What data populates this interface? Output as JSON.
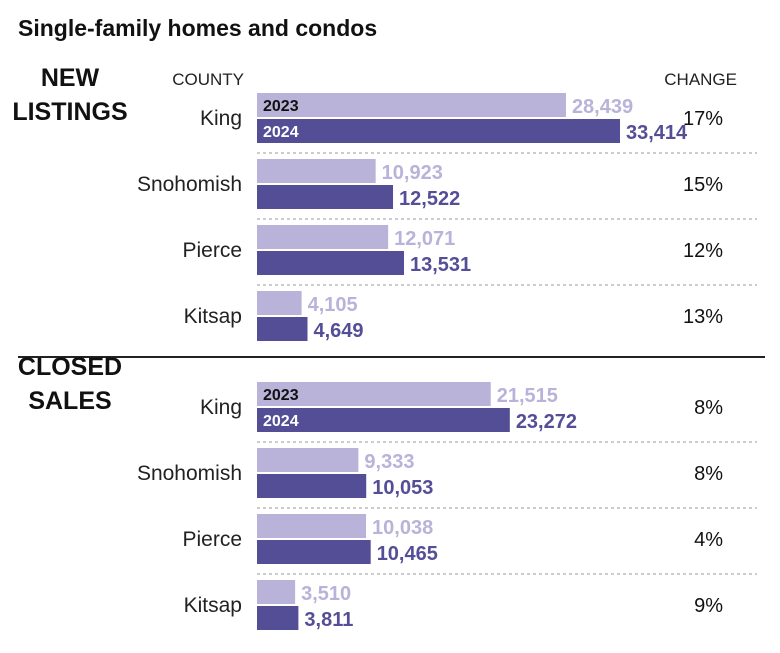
{
  "chart_data": {
    "type": "bar",
    "title": "Single-family homes and condos",
    "county_header": "COUNTY",
    "change_header": "CHANGE",
    "series": [
      {
        "name": "2023",
        "color": "#b9b2d9"
      },
      {
        "name": "2024",
        "color": "#544e97"
      }
    ],
    "groups": [
      {
        "label_line1": "NEW",
        "label_line2": "LISTINGS",
        "rows": [
          {
            "county": "King",
            "v2023": 28439,
            "v2024": 33414,
            "label2023": "28,439",
            "label2024": "33,414",
            "change": "17%"
          },
          {
            "county": "Snohomish",
            "v2023": 10923,
            "v2024": 12522,
            "label2023": "10,923",
            "label2024": "12,522",
            "change": "15%"
          },
          {
            "county": "Pierce",
            "v2023": 12071,
            "v2024": 13531,
            "label2023": "12,071",
            "label2024": "13,531",
            "change": "12%"
          },
          {
            "county": "Kitsap",
            "v2023": 4105,
            "v2024": 4649,
            "label2023": "4,105",
            "label2024": "4,649",
            "change": "13%"
          }
        ]
      },
      {
        "label_line1": "CLOSED",
        "label_line2": "SALES",
        "rows": [
          {
            "county": "King",
            "v2023": 21515,
            "v2024": 23272,
            "label2023": "21,515",
            "label2024": "23,272",
            "change": "8%"
          },
          {
            "county": "Snohomish",
            "v2023": 9333,
            "v2024": 10053,
            "label2023": "9,333",
            "label2024": "10,053",
            "change": "8%"
          },
          {
            "county": "Pierce",
            "v2023": 10038,
            "v2024": 10465,
            "label2023": "10,038",
            "label2024": "10,465",
            "change": "4%"
          },
          {
            "county": "Kitsap",
            "v2023": 3510,
            "v2024": 3811,
            "label2023": "3,510",
            "label2024": "3,811",
            "change": "9%"
          }
        ]
      }
    ]
  }
}
